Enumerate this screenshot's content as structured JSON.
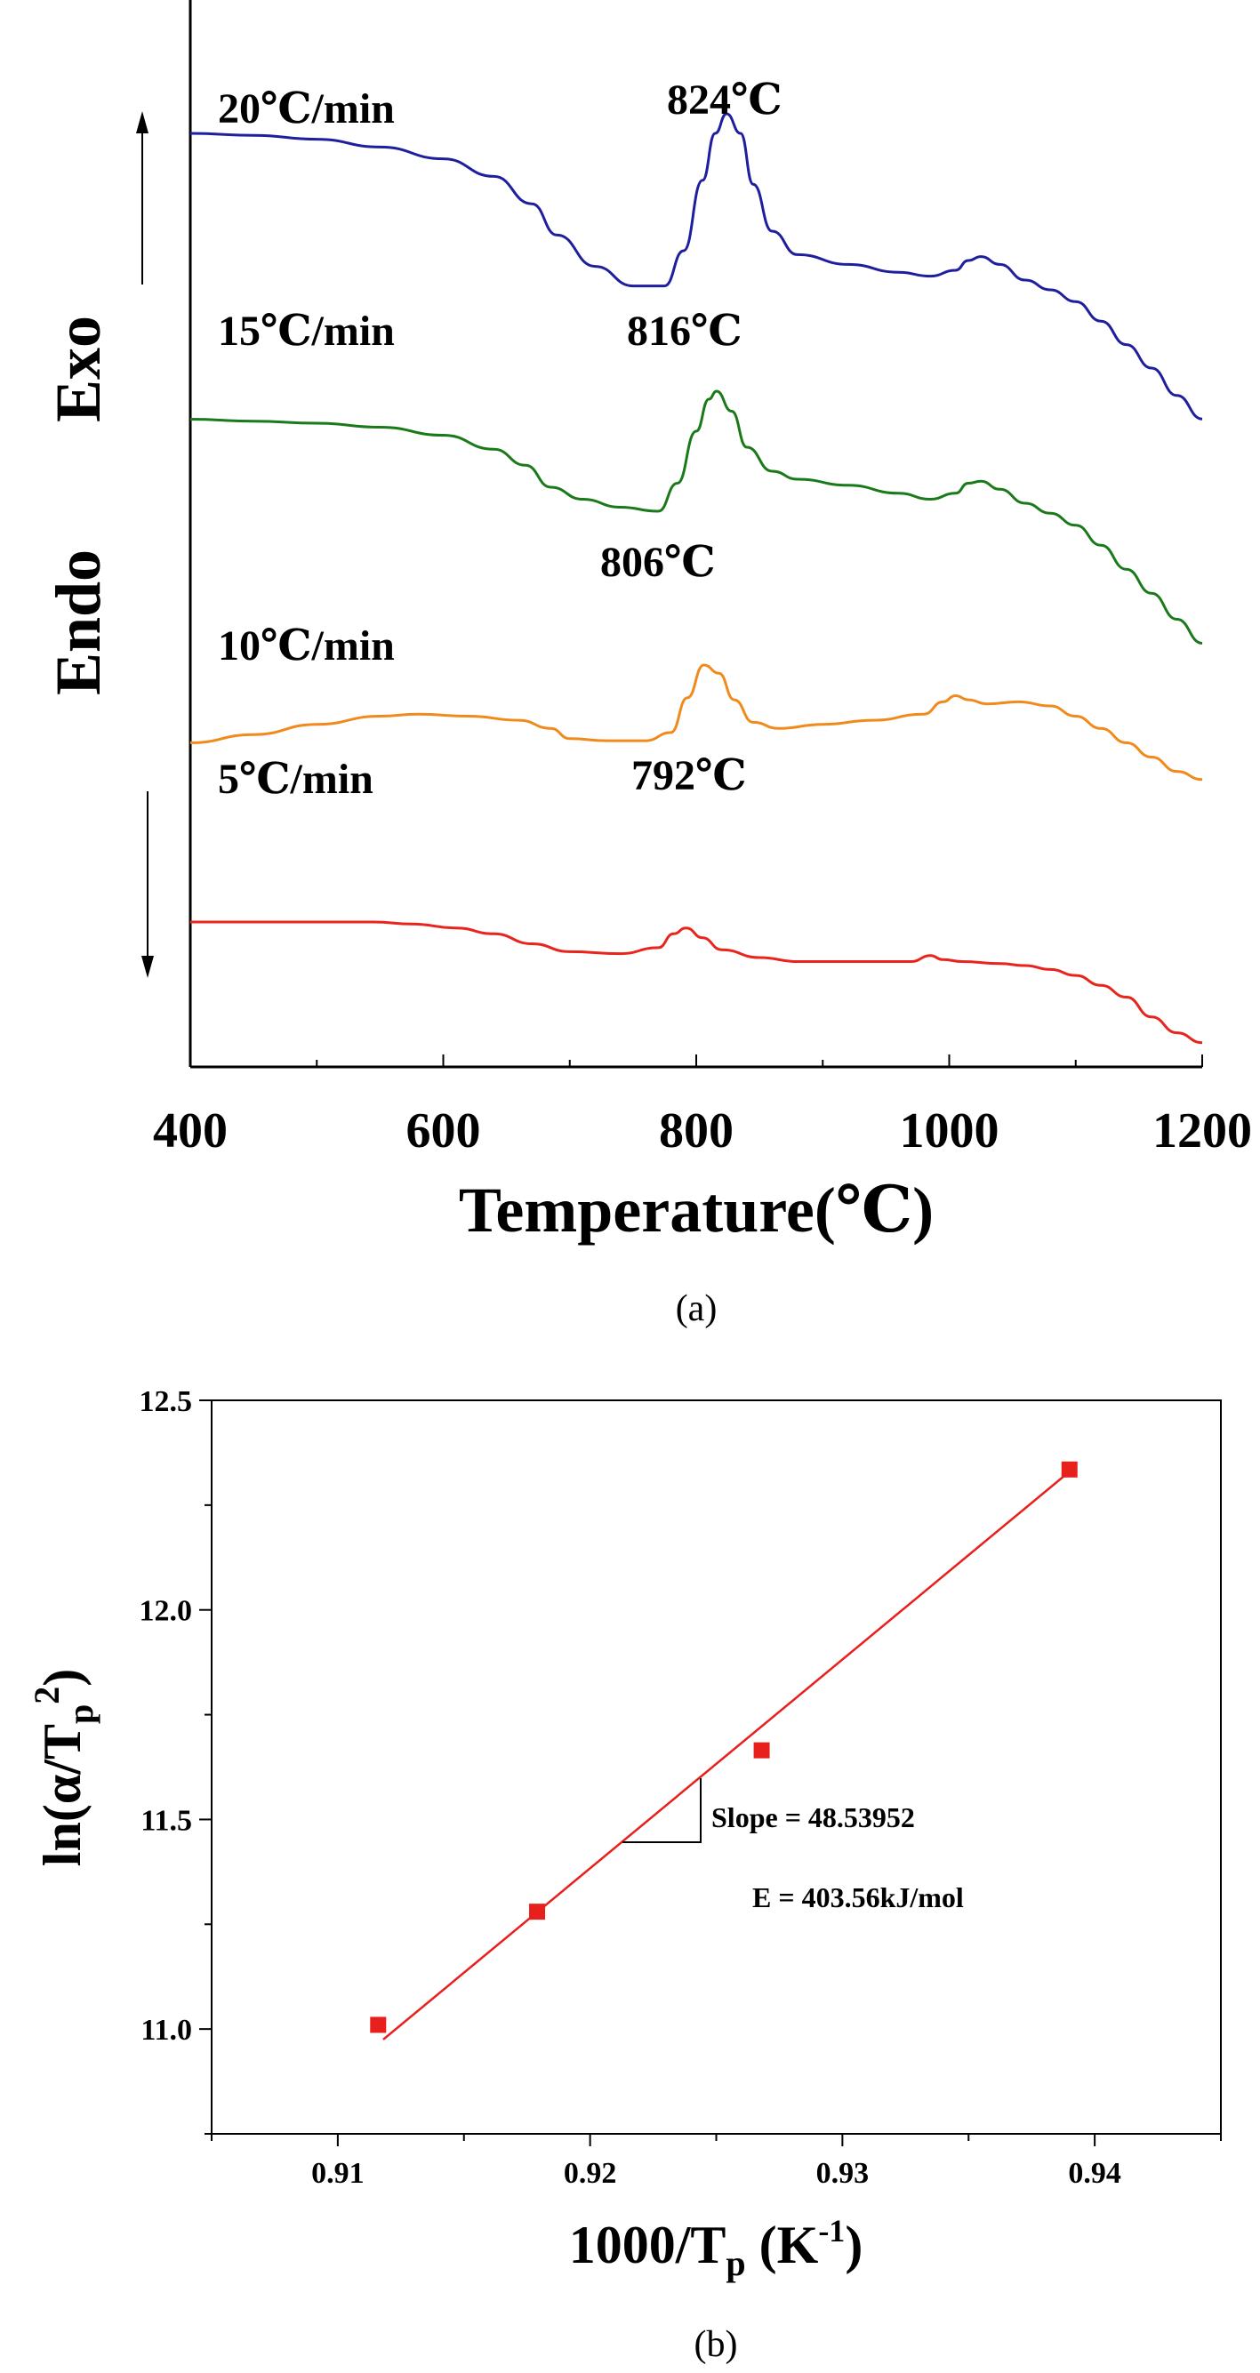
{
  "chart_data": [
    {
      "type": "line",
      "title": "",
      "caption": "(a)",
      "xlabel": "Temperature(℃)",
      "ylabel_endo": "Endo",
      "ylabel_exo": "Exo",
      "xlim": [
        400,
        1200
      ],
      "x_ticks": [
        "400",
        "600",
        "800",
        "1000",
        "1200"
      ],
      "y_ticks_shown": false,
      "grid": false,
      "note": "DSC heating curves, vertically offset; y axis has no numeric scale (relative heat flow, up = Exo)",
      "series": [
        {
          "name": "20℃/min",
          "color": "#1f1f9e",
          "peak_label": "824℃",
          "points": [
            [
              400,
              1.0
            ],
            [
              450,
              0.995
            ],
            [
              500,
              0.985
            ],
            [
              550,
              0.965
            ],
            [
              600,
              0.935
            ],
            [
              640,
              0.89
            ],
            [
              670,
              0.82
            ],
            [
              690,
              0.74
            ],
            [
              720,
              0.66
            ],
            [
              750,
              0.61
            ],
            [
              775,
              0.61
            ],
            [
              790,
              0.7
            ],
            [
              805,
              0.88
            ],
            [
              815,
              1.0
            ],
            [
              824,
              1.05
            ],
            [
              835,
              1.0
            ],
            [
              845,
              0.87
            ],
            [
              860,
              0.75
            ],
            [
              880,
              0.69
            ],
            [
              920,
              0.665
            ],
            [
              960,
              0.645
            ],
            [
              985,
              0.635
            ],
            [
              1005,
              0.65
            ],
            [
              1015,
              0.675
            ],
            [
              1025,
              0.685
            ],
            [
              1040,
              0.665
            ],
            [
              1060,
              0.625
            ],
            [
              1080,
              0.6
            ],
            [
              1100,
              0.57
            ],
            [
              1120,
              0.52
            ],
            [
              1140,
              0.46
            ],
            [
              1160,
              0.4
            ],
            [
              1180,
              0.33
            ],
            [
              1200,
              0.27
            ]
          ]
        },
        {
          "name": "15℃/min",
          "color": "#1a7a1a",
          "peak_label": "816℃",
          "points": [
            [
              400,
              0.83
            ],
            [
              450,
              0.825
            ],
            [
              500,
              0.82
            ],
            [
              550,
              0.81
            ],
            [
              600,
              0.79
            ],
            [
              640,
              0.755
            ],
            [
              665,
              0.715
            ],
            [
              685,
              0.66
            ],
            [
              710,
              0.63
            ],
            [
              740,
              0.61
            ],
            [
              770,
              0.6
            ],
            [
              785,
              0.67
            ],
            [
              800,
              0.8
            ],
            [
              810,
              0.88
            ],
            [
              816,
              0.9
            ],
            [
              828,
              0.85
            ],
            [
              840,
              0.76
            ],
            [
              860,
              0.7
            ],
            [
              880,
              0.68
            ],
            [
              920,
              0.665
            ],
            [
              960,
              0.645
            ],
            [
              985,
              0.63
            ],
            [
              1005,
              0.645
            ],
            [
              1015,
              0.67
            ],
            [
              1025,
              0.675
            ],
            [
              1040,
              0.655
            ],
            [
              1060,
              0.62
            ],
            [
              1080,
              0.595
            ],
            [
              1100,
              0.565
            ],
            [
              1120,
              0.515
            ],
            [
              1140,
              0.455
            ],
            [
              1160,
              0.395
            ],
            [
              1180,
              0.33
            ],
            [
              1200,
              0.27
            ]
          ]
        },
        {
          "name": "10℃/min",
          "color": "#f08a1c",
          "peak_label": "806℃",
          "points": [
            [
              400,
              0.51
            ],
            [
              450,
              0.53
            ],
            [
              500,
              0.555
            ],
            [
              550,
              0.575
            ],
            [
              580,
              0.58
            ],
            [
              620,
              0.575
            ],
            [
              660,
              0.565
            ],
            [
              685,
              0.545
            ],
            [
              700,
              0.52
            ],
            [
              730,
              0.515
            ],
            [
              760,
              0.515
            ],
            [
              780,
              0.535
            ],
            [
              793,
              0.62
            ],
            [
              806,
              0.7
            ],
            [
              818,
              0.68
            ],
            [
              830,
              0.615
            ],
            [
              845,
              0.56
            ],
            [
              865,
              0.545
            ],
            [
              900,
              0.555
            ],
            [
              940,
              0.565
            ],
            [
              980,
              0.58
            ],
            [
              995,
              0.61
            ],
            [
              1005,
              0.625
            ],
            [
              1015,
              0.615
            ],
            [
              1030,
              0.605
            ],
            [
              1055,
              0.61
            ],
            [
              1080,
              0.6
            ],
            [
              1100,
              0.575
            ],
            [
              1120,
              0.545
            ],
            [
              1140,
              0.51
            ],
            [
              1160,
              0.475
            ],
            [
              1180,
              0.44
            ],
            [
              1200,
              0.42
            ]
          ]
        },
        {
          "name": "5℃/min",
          "color": "#e8241c",
          "peak_label": "792℃",
          "points": [
            [
              400,
              0.4
            ],
            [
              450,
              0.4
            ],
            [
              500,
              0.4
            ],
            [
              545,
              0.4
            ],
            [
              575,
              0.395
            ],
            [
              610,
              0.385
            ],
            [
              640,
              0.37
            ],
            [
              670,
              0.345
            ],
            [
              700,
              0.325
            ],
            [
              740,
              0.32
            ],
            [
              770,
              0.335
            ],
            [
              782,
              0.37
            ],
            [
              792,
              0.385
            ],
            [
              805,
              0.36
            ],
            [
              820,
              0.33
            ],
            [
              850,
              0.31
            ],
            [
              880,
              0.3
            ],
            [
              930,
              0.3
            ],
            [
              970,
              0.3
            ],
            [
              985,
              0.315
            ],
            [
              995,
              0.305
            ],
            [
              1010,
              0.3
            ],
            [
              1040,
              0.295
            ],
            [
              1060,
              0.29
            ],
            [
              1080,
              0.28
            ],
            [
              1100,
              0.265
            ],
            [
              1120,
              0.24
            ],
            [
              1140,
              0.21
            ],
            [
              1160,
              0.16
            ],
            [
              1180,
              0.12
            ],
            [
              1200,
              0.095
            ]
          ]
        }
      ]
    },
    {
      "type": "scatter",
      "title": "",
      "caption": "(b)",
      "xlabel": "1000/T_p (K⁻¹)",
      "ylabel": "ln(α/T_p²)",
      "xlim": [
        0.905,
        0.945
      ],
      "ylim": [
        10.75,
        12.5
      ],
      "x_ticks": [
        "0.91",
        "0.92",
        "0.93",
        "0.94"
      ],
      "y_ticks": [
        "11.0",
        "11.5",
        "12.0",
        "12.5"
      ],
      "grid": false,
      "marker_color": "#e8201c",
      "line_color": "#e8201c",
      "points": [
        [
          0.9116,
          11.01
        ],
        [
          0.9179,
          11.28
        ],
        [
          0.9268,
          11.665
        ],
        [
          0.939,
          12.335
        ]
      ],
      "fit_line": [
        [
          0.9118,
          10.975
        ],
        [
          0.939,
          12.33
        ]
      ],
      "annotations": [
        "Slope = 48.53952",
        "E = 403.56kJ/mol"
      ]
    }
  ]
}
